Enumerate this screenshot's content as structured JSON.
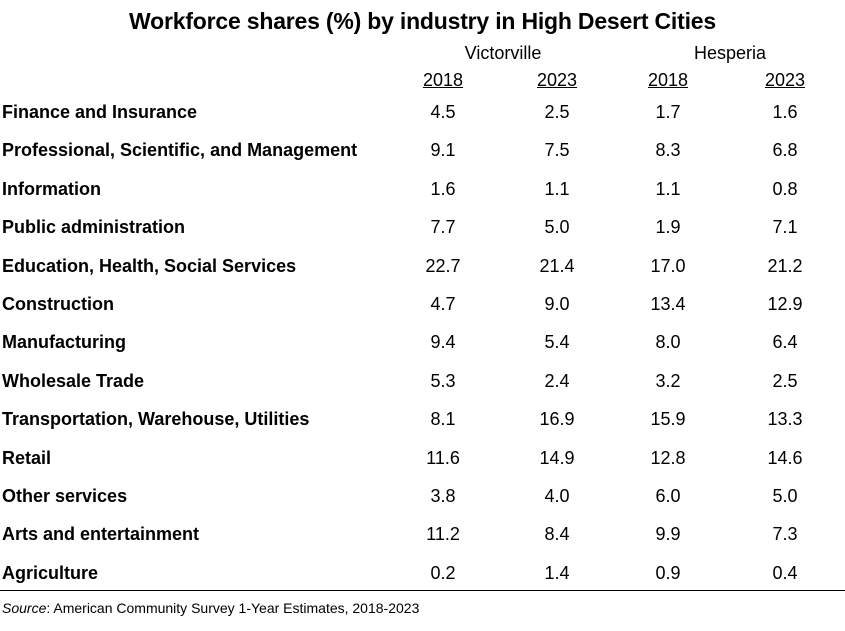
{
  "chart_data": {
    "type": "table",
    "title": "Workforce shares (%) by industry in High Desert Cities",
    "groups": [
      {
        "name": "Victorville",
        "years": [
          "2018",
          "2023"
        ]
      },
      {
        "name": "Hesperia",
        "years": [
          "2018",
          "2023"
        ]
      }
    ],
    "rows": [
      {
        "label": "Finance and Insurance",
        "values": [
          "4.5",
          "2.5",
          "1.7",
          "1.6"
        ]
      },
      {
        "label": "Professional, Scientific, and Management",
        "values": [
          "9.1",
          "7.5",
          "8.3",
          "6.8"
        ]
      },
      {
        "label": "Information",
        "values": [
          "1.6",
          "1.1",
          "1.1",
          "0.8"
        ]
      },
      {
        "label": "Public administration",
        "values": [
          "7.7",
          "5.0",
          "1.9",
          "7.1"
        ]
      },
      {
        "label": "Education, Health, Social Services",
        "values": [
          "22.7",
          "21.4",
          "17.0",
          "21.2"
        ]
      },
      {
        "label": "Construction",
        "values": [
          "4.7",
          "9.0",
          "13.4",
          "12.9"
        ]
      },
      {
        "label": "Manufacturing",
        "values": [
          "9.4",
          "5.4",
          "8.0",
          "6.4"
        ]
      },
      {
        "label": "Wholesale Trade",
        "values": [
          "5.3",
          "2.4",
          "3.2",
          "2.5"
        ]
      },
      {
        "label": "Transportation, Warehouse, Utilities",
        "values": [
          "8.1",
          "16.9",
          "15.9",
          "13.3"
        ]
      },
      {
        "label": "Retail",
        "values": [
          "11.6",
          "14.9",
          "12.8",
          "14.6"
        ]
      },
      {
        "label": "Other services",
        "values": [
          "3.8",
          "4.0",
          "6.0",
          "5.0"
        ]
      },
      {
        "label": "Arts and entertainment",
        "values": [
          "11.2",
          "8.4",
          "9.9",
          "7.3"
        ]
      },
      {
        "label": "Agriculture",
        "values": [
          "0.2",
          "1.4",
          "0.9",
          "0.4"
        ]
      }
    ],
    "source_label": "Source",
    "source_text": ": American Community Survey 1-Year Estimates, 2018-2023"
  }
}
